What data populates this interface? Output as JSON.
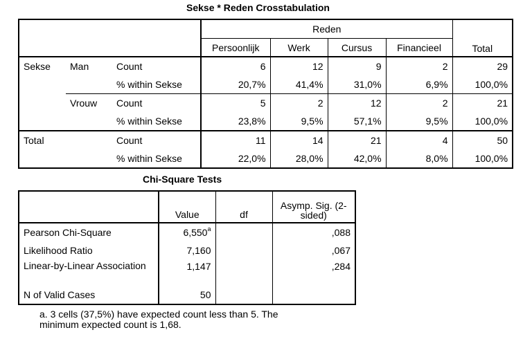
{
  "crosstab": {
    "title": "Sekse * Reden Crosstabulation",
    "group_header": "Reden",
    "columns": [
      "Persoonlijk",
      "Werk",
      "Cursus",
      "Financieel"
    ],
    "total_label": "Total",
    "row_var": "Sekse",
    "rows": [
      {
        "group": "Man",
        "stat": "Count",
        "values": [
          "6",
          "12",
          "9",
          "2"
        ],
        "total": "29"
      },
      {
        "group": "",
        "stat": "% within Sekse",
        "values": [
          "20,7%",
          "41,4%",
          "31,0%",
          "6,9%"
        ],
        "total": "100,0%"
      },
      {
        "group": "Vrouw",
        "stat": "Count",
        "values": [
          "5",
          "2",
          "12",
          "2"
        ],
        "total": "21"
      },
      {
        "group": "",
        "stat": "% within Sekse",
        "values": [
          "23,8%",
          "9,5%",
          "57,1%",
          "9,5%"
        ],
        "total": "100,0%"
      }
    ],
    "total_rows": [
      {
        "label": "Total",
        "stat": "Count",
        "values": [
          "11",
          "14",
          "21",
          "4"
        ],
        "total": "50"
      },
      {
        "label": "",
        "stat": "% within Sekse",
        "values": [
          "22,0%",
          "28,0%",
          "42,0%",
          "8,0%"
        ],
        "total": "100,0%"
      }
    ]
  },
  "chisq": {
    "title": "Chi-Square Tests",
    "headers": {
      "value": "Value",
      "df": "df",
      "sig": "Asymp. Sig. (2-sided)"
    },
    "rows": [
      {
        "label": "Pearson Chi-Square",
        "value": "6,550",
        "sup": "a",
        "df": "",
        "sig": ",088"
      },
      {
        "label": "Likelihood Ratio",
        "value": "7,160",
        "sup": "",
        "df": "",
        "sig": ",067"
      },
      {
        "label": "Linear-by-Linear Association",
        "value": "1,147",
        "sup": "",
        "df": "",
        "sig": ",284"
      },
      {
        "label": "N of Valid Cases",
        "value": "50",
        "sup": "",
        "df": "",
        "sig": ""
      }
    ],
    "footnote": "a. 3 cells (37,5%) have expected count less than 5. The minimum expected count is 1,68."
  }
}
